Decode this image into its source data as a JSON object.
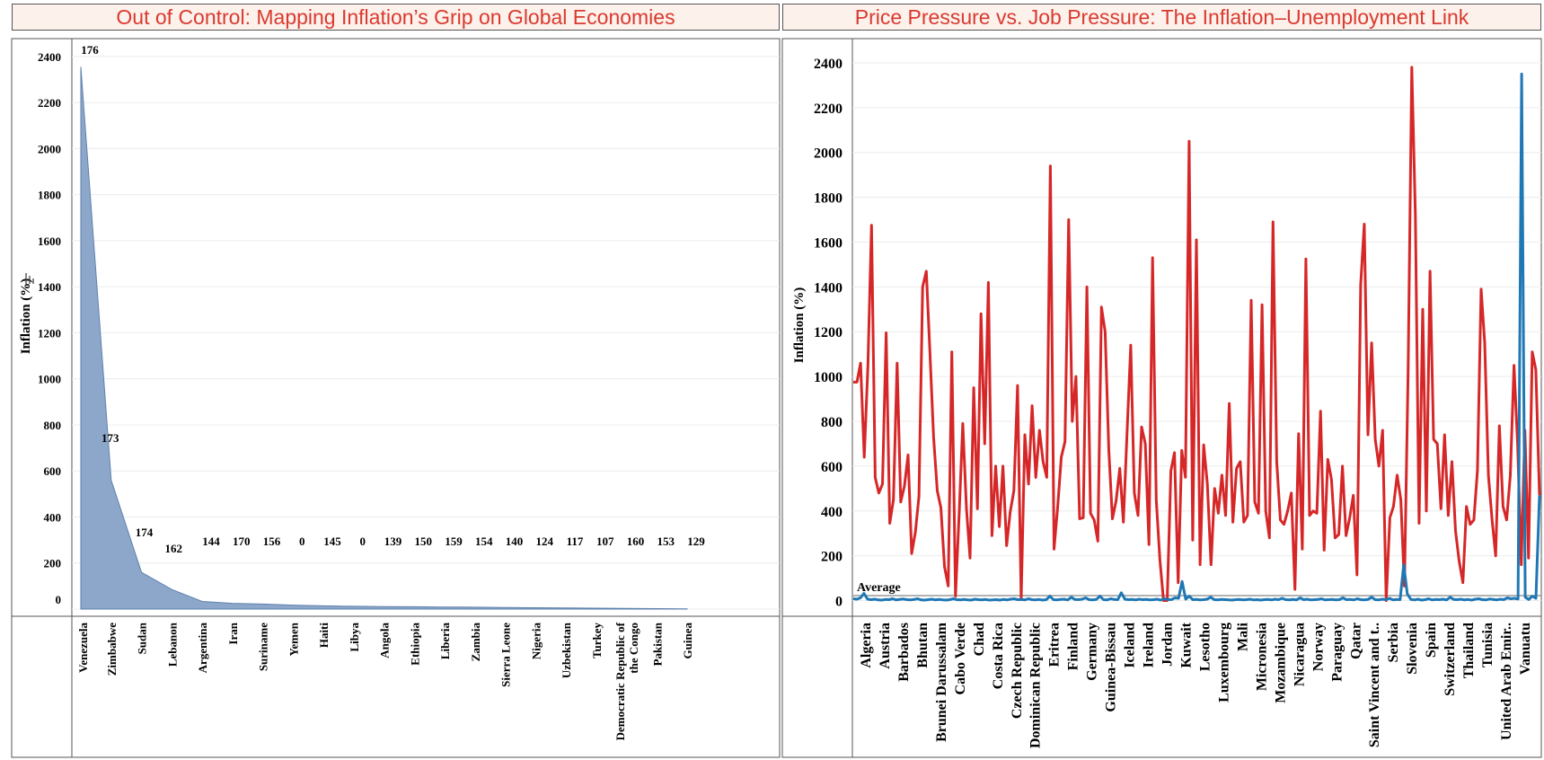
{
  "dashboard": {
    "left_title": "Out of Control: Mapping Inflation’s Grip on Global Economies",
    "right_title": "Price Pressure vs. Job Pressure: The Inflation–Unemployment Link"
  },
  "colors": {
    "title_text": "#d93a2f",
    "title_bg": "#fdf1ec",
    "area_fill": "#8ca7c9",
    "area_stroke": "#5f81ad",
    "inflation_line": "#d62728",
    "unemployment_line": "#1f77b4",
    "average_line": "#9a9a9a"
  },
  "chart_data": [
    {
      "type": "area",
      "title": "Out of Control: Mapping Inflation’s Grip on Global Economies",
      "ylabel": "Inflation (%)",
      "ylabel_icon": "sort-descending-icon",
      "ylim": [
        0,
        2450
      ],
      "yticks": [
        0,
        200,
        400,
        600,
        800,
        1000,
        1200,
        1400,
        1600,
        1800,
        2000,
        2200,
        2400
      ],
      "grid": true,
      "categories": [
        "Venezuela",
        "Zimbabwe",
        "Sudan",
        "Lebanon",
        "Argentina",
        "Iran",
        "Suriname",
        "Yemen",
        "Haiti",
        "Libya",
        "Angola",
        "Ethiopia",
        "Liberia",
        "Zambia",
        "Sierra Leone",
        "Nigeria",
        "Uzbekistan",
        "Turkey",
        "Democratic Republic of the Congo",
        "Pakistan",
        "Guinea"
      ],
      "category_lines": [
        [
          "Venezuela"
        ],
        [
          "Zimbabwe"
        ],
        [
          "Sudan"
        ],
        [
          "Lebanon"
        ],
        [
          "Argentina"
        ],
        [
          "Iran"
        ],
        [
          "Suriname"
        ],
        [
          "Yemen"
        ],
        [
          "Haiti"
        ],
        [
          "Libya"
        ],
        [
          "Angola"
        ],
        [
          "Ethiopia"
        ],
        [
          "Liberia"
        ],
        [
          "Zambia"
        ],
        [
          "Sierra Leone"
        ],
        [
          "Nigeria"
        ],
        [
          "Uzbekistan"
        ],
        [
          "Turkey"
        ],
        [
          "Democratic Republic of",
          "the Congo"
        ],
        [
          "Pakistan"
        ],
        [
          "Guinea"
        ]
      ],
      "values": [
        2355,
        560,
        160,
        85,
        33,
        25,
        22,
        17,
        14,
        12,
        11,
        10,
        9,
        8,
        7,
        6,
        5,
        4,
        3,
        2,
        1
      ],
      "data_labels": [
        "176",
        "173",
        "174",
        "162",
        "144",
        "170",
        "156",
        "0",
        "145",
        "0",
        "139",
        "150",
        "159",
        "154",
        "140",
        "124",
        "117",
        "107",
        "160",
        "153",
        "129"
      ]
    },
    {
      "type": "line",
      "title": "Price Pressure vs. Job Pressure: The Inflation–Unemployment Link",
      "ylabel": "Inflation (%)",
      "ylim": [
        -70,
        2480
      ],
      "yticks": [
        0,
        200,
        400,
        600,
        800,
        1000,
        1200,
        1400,
        1600,
        1800,
        2000,
        2200,
        2400
      ],
      "grid": true,
      "reference_line": {
        "label": "Average",
        "value": 22
      },
      "x_tick_labels": [
        "Algeria",
        "Austria",
        "Barbados",
        "Bhutan",
        "Brunei Darussalam",
        "Cabo Verde",
        "Chad",
        "Costa Rica",
        "Czech Republic",
        "Dominican Republic",
        "Eritrea",
        "Finland",
        "Germany",
        "Guinea-Bissau",
        "Iceland",
        "Ireland",
        "Jordan",
        "Kuwait",
        "Lesotho",
        "Luxembourg",
        "Mali",
        "Micronesia",
        "Mozambique",
        "Nicaragua",
        "Norway",
        "Paraguay",
        "Qatar",
        "Saint Vincent and t..",
        "Serbia",
        "Slovenia",
        "Spain",
        "Switzerland",
        "Thailand",
        "Tunisia",
        "United Arab Emir..",
        "Vanuatu"
      ],
      "series": [
        {
          "values": [
            975,
            975,
            1060,
            640,
            1050,
            1675,
            550,
            480,
            520,
            1195,
            345,
            450,
            1060,
            440,
            510,
            650,
            210,
            305,
            465,
            1400,
            1470,
            1110,
            730,
            490,
            415,
            150,
            65,
            1110,
            20,
            390,
            790,
            410,
            190,
            950,
            410,
            1280,
            700,
            1420,
            290,
            600,
            330,
            600,
            245,
            395,
            490,
            960,
            5,
            740,
            520,
            870,
            550,
            760,
            620,
            550,
            1940,
            230,
            420,
            640,
            710,
            1700,
            800,
            1000,
            365,
            370,
            1400,
            390,
            360,
            265,
            1310,
            1200,
            670,
            365,
            445,
            590,
            350,
            750,
            1140,
            480,
            380,
            775,
            700,
            250,
            1530,
            450,
            180,
            0,
            0,
            580,
            660,
            80,
            670,
            550,
            2050,
            270,
            1610,
            160,
            695,
            520,
            160,
            500,
            390,
            560,
            380,
            880,
            350,
            590,
            620,
            350,
            380,
            1340,
            440,
            390,
            1320,
            400,
            280,
            1690,
            620,
            360,
            340,
            400,
            480,
            50,
            745,
            230,
            1525,
            380,
            400,
            390,
            845,
            225,
            630,
            540,
            280,
            295,
            600,
            290,
            370,
            470,
            115,
            1410,
            1680,
            740,
            1150,
            720,
            600,
            760,
            0,
            370,
            420,
            560,
            450,
            65,
            1020,
            2380,
            1720,
            345,
            1300,
            400,
            1470,
            720,
            700,
            410,
            740,
            380,
            620,
            310,
            175,
            80,
            420,
            340,
            360,
            580,
            1390,
            1150,
            560,
            360,
            200,
            780,
            420,
            360,
            560,
            1050,
            700,
            160,
            760,
            190,
            1110,
            1030,
            470
          ]
        },
        {
          "values": [
            8,
            6,
            12,
            32,
            6,
            4,
            6,
            3,
            2,
            5,
            4,
            8,
            3,
            5,
            7,
            4,
            3,
            5,
            8,
            3,
            2,
            4,
            6,
            3,
            5,
            3,
            2,
            4,
            8,
            4,
            3,
            5,
            3,
            2,
            6,
            4,
            3,
            5,
            2,
            3,
            4,
            2,
            5,
            3,
            6,
            8,
            4,
            5,
            3,
            8,
            4,
            3,
            5,
            2,
            4,
            20,
            4,
            3,
            5,
            6,
            3,
            15,
            5,
            4,
            6,
            12,
            4,
            3,
            5,
            20,
            4,
            3,
            8,
            5,
            4,
            35,
            6,
            4,
            5,
            3,
            6,
            4,
            5,
            3,
            4,
            6,
            2,
            8,
            5,
            4,
            12,
            10,
            85,
            6,
            20,
            4,
            5,
            3,
            4,
            6,
            15,
            4,
            3,
            5,
            4,
            3,
            2,
            4,
            5,
            3,
            4,
            6,
            3,
            4,
            2,
            4,
            5,
            3,
            6,
            4,
            10,
            4,
            3,
            5,
            3,
            12,
            4,
            6,
            3,
            4,
            5,
            8,
            3,
            4,
            5,
            3,
            4,
            12,
            4,
            5,
            3,
            8,
            4,
            3,
            5,
            15,
            4,
            3,
            6,
            4,
            10,
            3,
            5,
            4,
            160,
            30,
            5,
            3,
            6,
            2,
            4,
            8,
            3,
            5,
            4,
            6,
            3,
            15,
            5,
            4,
            6,
            3,
            5,
            2,
            6,
            8,
            4,
            3,
            7,
            5,
            3,
            6,
            4,
            12,
            8,
            10,
            7,
            2350,
            15,
            5,
            20,
            10,
            470
          ]
        }
      ]
    }
  ]
}
